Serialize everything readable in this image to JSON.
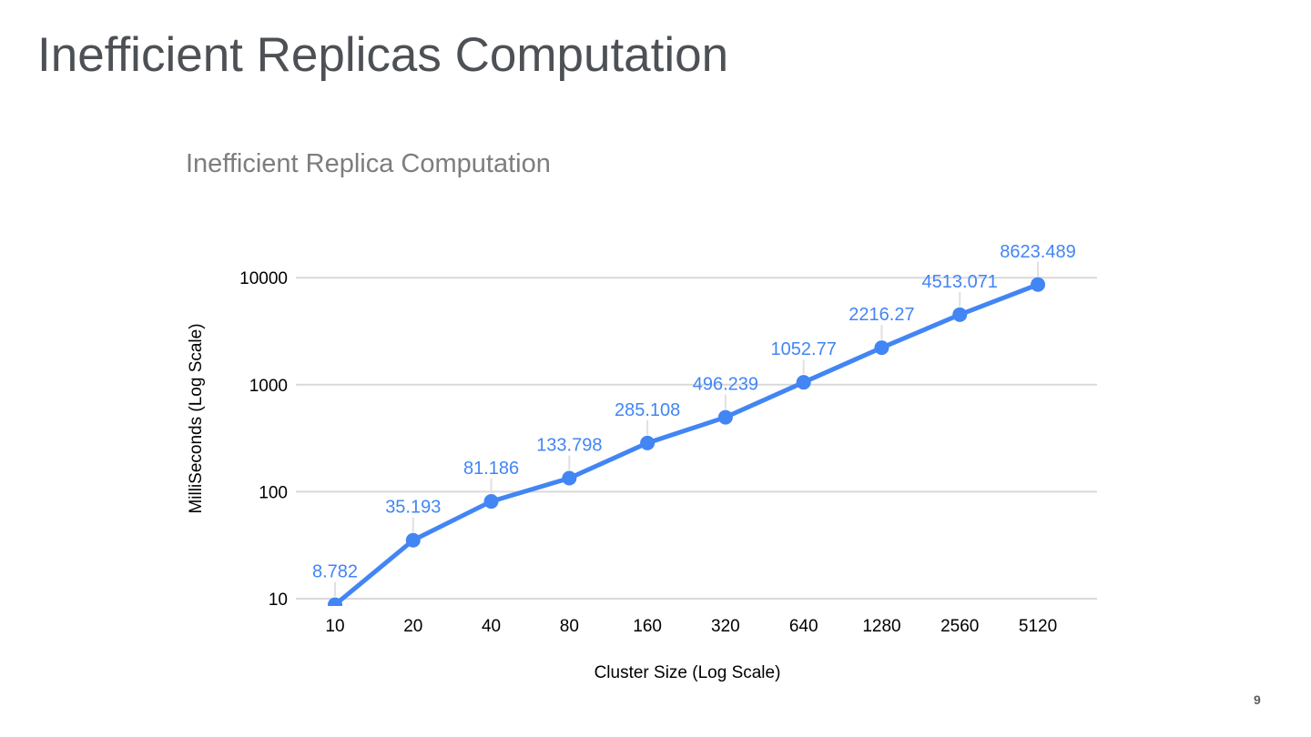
{
  "slide": {
    "title": "Inefficient Replicas Computation",
    "page_number": "9",
    "background_color": "#ffffff",
    "title_color": "#4d5156"
  },
  "chart_data": {
    "type": "line",
    "title": "Inefficient Replica Computation",
    "xlabel": "Cluster Size (Log Scale)",
    "ylabel": "MilliSeconds (Log Scale)",
    "x_scale": "log2",
    "y_scale": "log10",
    "categories": [
      "10",
      "20",
      "40",
      "80",
      "160",
      "320",
      "640",
      "1280",
      "2560",
      "5120"
    ],
    "values": [
      8.782,
      35.193,
      81.186,
      133.798,
      285.108,
      496.239,
      1052.77,
      2216.27,
      4513.071,
      8623.489
    ],
    "data_labels": [
      "8.782",
      "35.193",
      "81.186",
      "133.798",
      "285.108",
      "496.239",
      "1052.77",
      "2216.27",
      "4513.071",
      "8623.489"
    ],
    "y_ticks": [
      10,
      100,
      1000,
      10000
    ],
    "y_tick_labels": [
      "10",
      "100",
      "1000",
      "10000"
    ],
    "ylim": [
      8.2,
      13000
    ],
    "grid": "horizontal-only",
    "legend": "none",
    "series_color": "#4285f4",
    "data_label_color": "#4285f4",
    "gridline_color": "#d9d9d9",
    "leader_line_color": "#e0e0e0",
    "axis_text_color": "#000000",
    "chart_title_color": "#7d7d7d"
  }
}
